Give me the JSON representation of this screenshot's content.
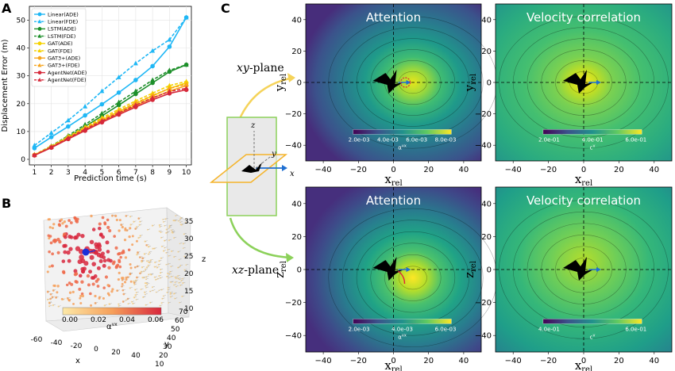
{
  "panels": {
    "a": "A",
    "b": "B",
    "c": "C"
  },
  "colors": {
    "linear": "#1fb7f5",
    "lstm": "#1d8f2a",
    "gat": "#f5d200",
    "gat3": "#f7a41b",
    "agentnet": "#d6293a"
  },
  "chart_data": [
    {
      "type": "line",
      "title": "",
      "xlabel": "Prediction time (s)",
      "ylabel": "Displacement Error (m)",
      "x": [
        1,
        2,
        3,
        4,
        5,
        6,
        7,
        8,
        9,
        10
      ],
      "xticks": [
        "1",
        "2",
        "3",
        "4",
        "5",
        "6",
        "7",
        "8",
        "9",
        "10"
      ],
      "ylim": [
        0,
        55
      ],
      "yticks": [
        "0",
        "10",
        "20",
        "30",
        "40",
        "50"
      ],
      "legend_position": "top-left",
      "series": [
        {
          "name": "Linear(ADE)",
          "style": "solid",
          "marker": "circle",
          "color_key": "linear",
          "values": [
            4.0,
            8.0,
            11.8,
            15.8,
            19.8,
            24.0,
            28.5,
            33.5,
            40.5,
            51.0
          ]
        },
        {
          "name": "Linear(FDE)",
          "style": "dashed",
          "marker": "triangle",
          "color_key": "linear",
          "values": [
            5.0,
            9.5,
            14.0,
            19.0,
            24.5,
            29.5,
            34.5,
            39.0,
            43.0,
            51.0
          ]
        },
        {
          "name": "LSTM(ADE)",
          "style": "solid",
          "marker": "circle",
          "color_key": "lstm",
          "values": [
            1.5,
            4.5,
            8.0,
            11.8,
            15.6,
            19.5,
            23.5,
            27.5,
            31.5,
            34.0
          ]
        },
        {
          "name": "LSTM(FDE)",
          "style": "dashed",
          "marker": "triangle",
          "color_key": "lstm",
          "values": [
            1.6,
            4.8,
            8.5,
            12.5,
            16.5,
            20.5,
            24.5,
            28.5,
            32.0,
            34.0
          ]
        },
        {
          "name": "GAT(ADE)",
          "style": "solid",
          "marker": "circle",
          "color_key": "gat",
          "values": [
            1.6,
            4.5,
            7.8,
            11.0,
            14.2,
            17.2,
            20.0,
            22.8,
            25.5,
            27.5
          ]
        },
        {
          "name": "GAT(FDE)",
          "style": "dashed",
          "marker": "triangle",
          "color_key": "gat",
          "values": [
            1.7,
            4.7,
            8.2,
            11.6,
            14.9,
            18.0,
            21.0,
            23.8,
            26.5,
            28.0
          ]
        },
        {
          "name": "GAT3+(ADE)",
          "style": "solid",
          "marker": "circle",
          "color_key": "gat3",
          "values": [
            1.5,
            4.3,
            7.5,
            10.6,
            13.7,
            16.6,
            19.3,
            22.0,
            24.5,
            26.5
          ]
        },
        {
          "name": "GAT3+(FDE)",
          "style": "dashed",
          "marker": "triangle",
          "color_key": "gat3",
          "values": [
            1.6,
            4.5,
            7.9,
            11.2,
            14.4,
            17.4,
            20.3,
            23.0,
            25.5,
            27.0
          ]
        },
        {
          "name": "AgentNet(ADE)",
          "style": "solid",
          "marker": "circle",
          "color_key": "agentnet",
          "values": [
            1.4,
            4.2,
            7.3,
            10.3,
            13.3,
            16.1,
            18.8,
            21.4,
            23.7,
            25.0
          ]
        },
        {
          "name": "AgentNet(FDE)",
          "style": "dashed",
          "marker": "triangle",
          "color_key": "agentnet",
          "values": [
            1.5,
            4.4,
            7.6,
            10.8,
            13.8,
            16.7,
            19.5,
            22.1,
            24.4,
            25.5
          ]
        }
      ]
    },
    {
      "type": "scatter",
      "subtype": "3d",
      "xlabel": "x",
      "ylabel": "y",
      "zlabel": "z",
      "xticks": [
        "-60",
        "-40",
        "-20",
        "0",
        "20",
        "40"
      ],
      "yticks": [
        "10",
        "20",
        "30",
        "40",
        "50",
        "60",
        "70"
      ],
      "zticks": [
        "10",
        "15",
        "20",
        "25",
        "30",
        "35"
      ],
      "colorbar": {
        "label": "α",
        "label_sup": "vx",
        "ticks": [
          "0.00",
          "0.02",
          "0.04",
          "0.06"
        ]
      }
    },
    {
      "type": "heatmap",
      "title": "Attention",
      "plane": "xy",
      "xlabel": "x",
      "xlabel_sub": "rel",
      "ylabel": "y",
      "ylabel_sub": "rel",
      "xticks": [
        "−40",
        "−20",
        "0",
        "20",
        "40"
      ],
      "yticks": [
        "40",
        "20",
        "0",
        "−20",
        "−40"
      ],
      "xlim": [
        -50,
        50
      ],
      "ylim": [
        -50,
        50
      ],
      "colorbar": {
        "label": "α",
        "label_sup": "vx",
        "ticks": [
          "2.0e-03",
          "4.0e-03",
          "6.0e-03",
          "8.0e-03"
        ]
      }
    },
    {
      "type": "heatmap",
      "title": "Velocity correlation",
      "plane": "xy",
      "xlabel": "x",
      "xlabel_sub": "rel",
      "ylabel": "y",
      "ylabel_sub": "rel",
      "xticks": [
        "−40",
        "−20",
        "0",
        "20",
        "40"
      ],
      "yticks": [
        "40",
        "20",
        "0",
        "−20",
        "−40"
      ],
      "xlim": [
        -50,
        50
      ],
      "ylim": [
        -50,
        50
      ],
      "colorbar": {
        "label": "c",
        "label_sup": "v",
        "ticks": [
          "2.0e-01",
          "4.0e-01",
          "6.0e-01"
        ]
      }
    },
    {
      "type": "heatmap",
      "title": "Attention",
      "plane": "xz",
      "xlabel": "x",
      "xlabel_sub": "rel",
      "ylabel": "z",
      "ylabel_sub": "rel",
      "xticks": [
        "−40",
        "−20",
        "0",
        "20",
        "40"
      ],
      "yticks": [
        "40",
        "20",
        "0",
        "−20",
        "−40"
      ],
      "xlim": [
        -50,
        50
      ],
      "ylim": [
        -50,
        50
      ],
      "colorbar": {
        "label": "α",
        "label_sup": "vx",
        "ticks": [
          "2.0e-03",
          "4.0e-03",
          "6.0e-03"
        ]
      }
    },
    {
      "type": "heatmap",
      "title": "Velocity correlation",
      "plane": "xz",
      "xlabel": "x",
      "xlabel_sub": "rel",
      "ylabel": "z",
      "ylabel_sub": "rel",
      "xticks": [
        "−40",
        "−20",
        "0",
        "20",
        "40"
      ],
      "yticks": [
        "40",
        "20",
        "0",
        "−20",
        "−40"
      ],
      "xlim": [
        -50,
        50
      ],
      "ylim": [
        -50,
        50
      ],
      "colorbar": {
        "label": "c",
        "label_sup": "v",
        "ticks": [
          "4.0e-01",
          "6.0e-01"
        ]
      }
    }
  ],
  "diagram": {
    "xy_plane": "xy",
    "xy_suffix": "-plane",
    "xz_plane": "xz",
    "xz_suffix": "-plane",
    "axis_x": "x",
    "axis_y": "y",
    "axis_z": "z"
  }
}
